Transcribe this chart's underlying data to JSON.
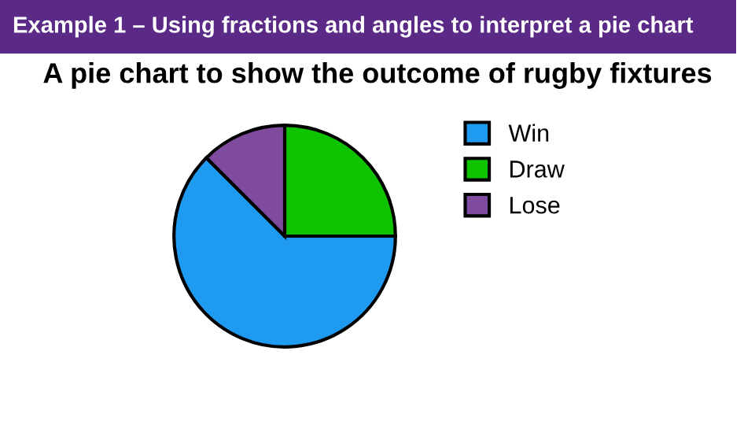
{
  "chart_data": {
    "type": "pie",
    "title": "A pie chart to show the outcome of rugby fixtures",
    "annotations": [
      "Example 1 – Using fractions and angles to interpret a pie chart"
    ],
    "categories": [
      "Win",
      "Draw",
      "Lose"
    ],
    "values": [
      62.5,
      25,
      12.5
    ],
    "colors": [
      "#1e9af0",
      "#0ec400",
      "#7e4b9e"
    ],
    "legend": "right"
  }
}
